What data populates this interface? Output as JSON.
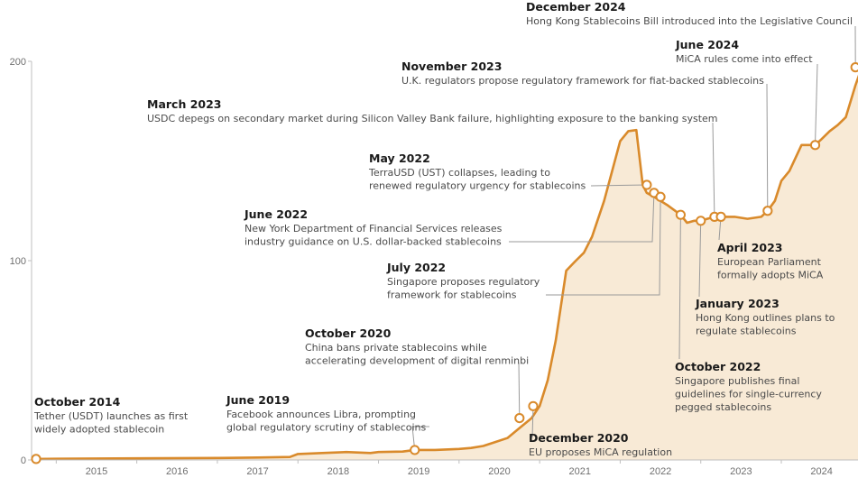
{
  "chart_data": {
    "type": "area",
    "title": "",
    "xlabel": "",
    "ylabel": "",
    "colors": {
      "line": "#d98a2b",
      "fill": "#f8ead6",
      "axis": "#bfbfbf",
      "leader": "#9a9a9a"
    },
    "xlim": [
      2014.7,
      2025.0
    ],
    "ylim": [
      0,
      200
    ],
    "yticks": [
      0,
      100,
      200
    ],
    "xticks": [
      "2015",
      "2016",
      "2017",
      "2018",
      "2019",
      "2020",
      "2021",
      "2022",
      "2023",
      "2024"
    ],
    "grid": false,
    "legend": "none",
    "series": [
      {
        "x": [
          2014.75,
          2015.0,
          2016.0,
          2017.0,
          2017.5,
          2017.9,
          2018.0,
          2018.3,
          2018.6,
          2018.9,
          2019.0,
          2019.3,
          2019.45,
          2019.7,
          2020.0,
          2020.15,
          2020.3,
          2020.45,
          2020.6,
          2020.75,
          2020.9,
          2021.0,
          2021.1,
          2021.2,
          2021.33,
          2021.45,
          2021.55,
          2021.65,
          2021.8,
          2021.9,
          2022.0,
          2022.1,
          2022.2,
          2022.28,
          2022.33,
          2022.42,
          2022.5,
          2022.58,
          2022.75,
          2022.83,
          2022.92,
          2023.0,
          2023.08,
          2023.17,
          2023.25,
          2023.42,
          2023.58,
          2023.75,
          2023.83,
          2023.92,
          2024.0,
          2024.1,
          2024.25,
          2024.42,
          2024.5,
          2024.6,
          2024.7,
          2024.8,
          2024.92,
          2025.0
        ],
        "values": [
          0.5,
          0.6,
          0.8,
          1,
          1.2,
          1.5,
          3,
          3.5,
          4,
          3.5,
          4,
          4.2,
          5,
          5,
          5.5,
          6,
          7,
          9,
          11,
          16,
          21,
          27,
          40,
          60,
          95,
          100,
          104,
          112,
          130,
          145,
          160,
          165,
          165.5,
          138,
          134,
          132,
          130,
          128,
          123,
          119,
          120,
          120,
          121,
          122,
          122,
          122,
          121,
          122,
          125,
          130,
          140,
          145,
          158,
          158,
          161,
          165,
          168,
          172,
          188,
          197
        ]
      }
    ],
    "events": [
      {
        "x": 2014.75,
        "y": 0.5,
        "date": "October 2014",
        "text": [
          "Tether (USDT) launches as first",
          "widely adopted stablecoin"
        ]
      },
      {
        "x": 2019.45,
        "y": 5,
        "date": "June 2019",
        "text": [
          "Facebook announces Libra, prompting",
          "global regulatory scrutiny of stablecoins"
        ]
      },
      {
        "x": 2020.75,
        "y": 21,
        "date": "October 2020",
        "text": [
          "China bans private stablecoins while",
          "accelerating development of digital renminbi"
        ]
      },
      {
        "x": 2020.92,
        "y": 27,
        "date": "December 2020",
        "text": [
          "EU proposes MiCA regulation"
        ]
      },
      {
        "x": 2022.33,
        "y": 138,
        "date": "May 2022",
        "text": [
          "TerraUSD (UST) collapses, leading to",
          "renewed regulatory urgency for stablecoins"
        ]
      },
      {
        "x": 2022.42,
        "y": 134,
        "date": "June 2022",
        "text": [
          "New York Department of Financial Services releases",
          "industry guidance on U.S. dollar-backed stablecoins"
        ]
      },
      {
        "x": 2022.5,
        "y": 132,
        "date": "July 2022",
        "text": [
          "Singapore proposes regulatory",
          "framework for stablecoins"
        ]
      },
      {
        "x": 2022.75,
        "y": 123,
        "date": "October 2022",
        "text": [
          "Singapore publishes final",
          "guidelines for single-currency",
          "pegged stablecoins"
        ]
      },
      {
        "x": 2023.0,
        "y": 120,
        "date": "January 2023",
        "text": [
          "Hong Kong outlines plans to",
          "regulate stablecoins"
        ]
      },
      {
        "x": 2023.17,
        "y": 122,
        "date": "March 2023",
        "text": [
          "USDC depegs on secondary market during Silicon Valley Bank failure, highlighting exposure to the banking system"
        ]
      },
      {
        "x": 2023.25,
        "y": 122,
        "date": "April 2023",
        "text": [
          "European Parliament",
          "formally adopts MiCA"
        ]
      },
      {
        "x": 2023.83,
        "y": 125,
        "date": "November 2023",
        "text": [
          "U.K. regulators propose regulatory framework for fiat-backed stablecoins"
        ]
      },
      {
        "x": 2024.42,
        "y": 158,
        "date": "June 2024",
        "text": [
          "MiCA rules come into effect"
        ]
      },
      {
        "x": 2024.92,
        "y": 197,
        "date": "December 2024",
        "text": [
          "Hong Kong Stablecoins Bill introduced into the Legislative Council"
        ]
      }
    ]
  }
}
